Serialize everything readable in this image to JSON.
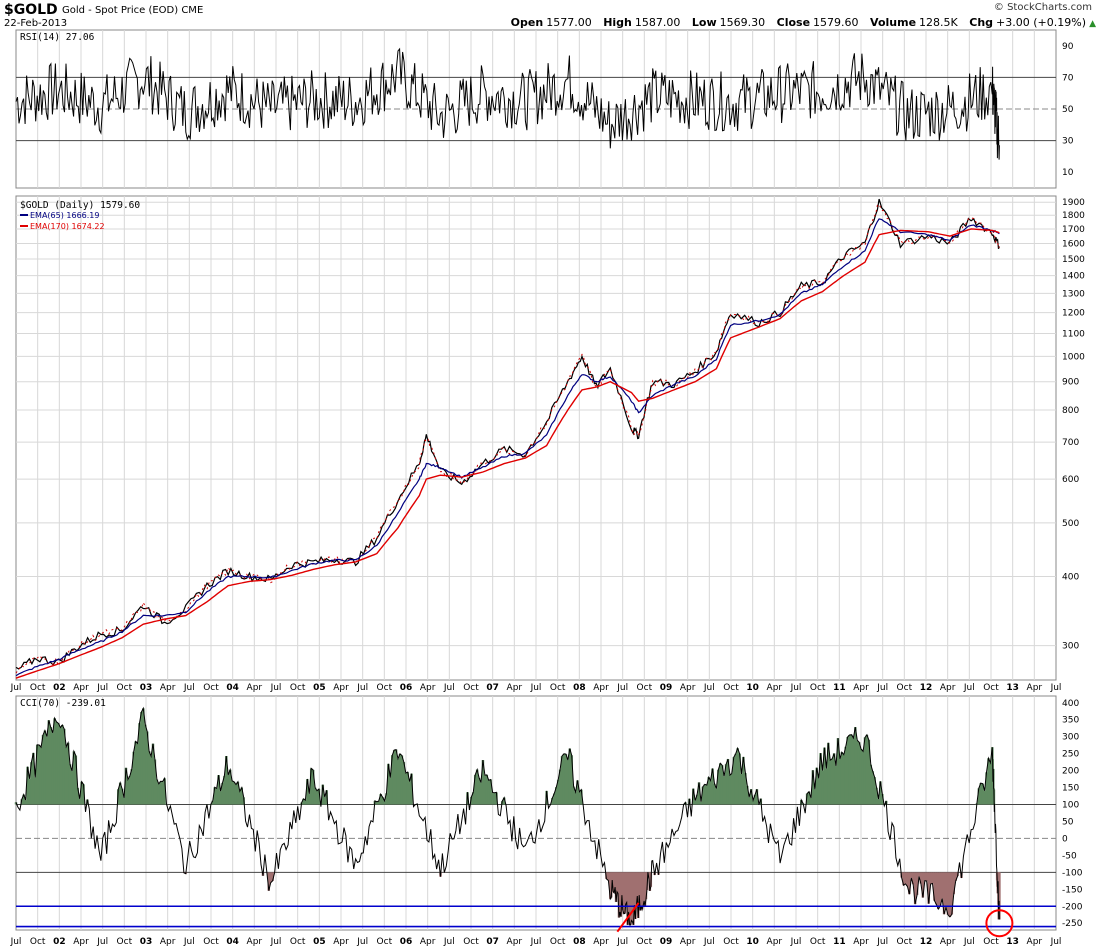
{
  "header": {
    "symbol": "$GOLD",
    "description": "Gold - Spot Price (EOD)",
    "exchange": "CME",
    "date": "22-Feb-2013",
    "brand": "© StockCharts.com",
    "ohlc": [
      {
        "label": "Open",
        "value": "1577.00"
      },
      {
        "label": "High",
        "value": "1587.00"
      },
      {
        "label": "Low",
        "value": "1569.30"
      },
      {
        "label": "Close",
        "value": "1579.60"
      },
      {
        "label": "Volume",
        "value": "128.5K"
      },
      {
        "label": "Chg",
        "value": "+3.00 (+0.19%)"
      }
    ],
    "chg_icon": "up-triangle-icon"
  },
  "colors": {
    "price_up": "#000000",
    "price_down": "#cc0000",
    "ema65": "#000080",
    "ema170": "#e00000",
    "fill_high": "#5f8a60",
    "fill_low": "#a07070",
    "hline_blue": "#0000cc",
    "annotation": "#ff0000",
    "grid": "#d8d8d8"
  },
  "rsi_panel": {
    "label": "RSI(14) 27.06",
    "ticks": [
      90,
      70,
      50,
      30,
      10
    ]
  },
  "price_panel": {
    "label": "$GOLD (Daily) 1579.60",
    "ema65_label": "EMA(65) 1666.19",
    "ema170_label": "EMA(170) 1674.22",
    "ticks": [
      1900,
      1800,
      1700,
      1600,
      1500,
      1400,
      1300,
      1200,
      1100,
      1000,
      900,
      800,
      700,
      600,
      500,
      400,
      300
    ]
  },
  "cci_panel": {
    "label": "CCI(70) -239.01",
    "ticks": [
      400,
      350,
      300,
      250,
      200,
      150,
      100,
      50,
      0,
      -50,
      -100,
      -150,
      -200,
      -250
    ]
  },
  "x_axis_labels": [
    "Jul",
    "Oct",
    "02",
    "Apr",
    "Jul",
    "Oct",
    "03",
    "Apr",
    "Jul",
    "Oct",
    "04",
    "Apr",
    "Jul",
    "Oct",
    "05",
    "Apr",
    "Jul",
    "Oct",
    "06",
    "Apr",
    "Jul",
    "Oct",
    "07",
    "Apr",
    "Jul",
    "Oct",
    "08",
    "Apr",
    "Jul",
    "Oct",
    "09",
    "Apr",
    "Jul",
    "Oct",
    "10",
    "Apr",
    "Jul",
    "Oct",
    "11",
    "Apr",
    "Jul",
    "Oct",
    "12",
    "Apr",
    "Jul",
    "Oct",
    "13",
    "Apr",
    "Jul"
  ],
  "chart_data": [
    {
      "type": "line",
      "title": "RSI(14) 27.06",
      "ylim": [
        0,
        100
      ],
      "reference_lines": [
        70,
        50,
        30
      ],
      "x": [
        "2001-07",
        "2002-01",
        "2002-07",
        "2003-01",
        "2003-07",
        "2004-01",
        "2004-07",
        "2005-01",
        "2005-07",
        "2006-01",
        "2006-07",
        "2007-01",
        "2007-07",
        "2008-01",
        "2008-07",
        "2009-01",
        "2009-07",
        "2010-01",
        "2010-07",
        "2011-01",
        "2011-07",
        "2012-01",
        "2012-07",
        "2013-01",
        "2013-02"
      ],
      "series": [
        {
          "name": "RSI(14)",
          "values": [
            55,
            62,
            52,
            70,
            48,
            62,
            50,
            56,
            55,
            72,
            45,
            60,
            55,
            68,
            40,
            58,
            56,
            54,
            60,
            62,
            70,
            46,
            50,
            62,
            27
          ]
        }
      ],
      "grid": true
    },
    {
      "type": "line",
      "title": "$GOLD (Daily) 1579.60",
      "log_scale": true,
      "ylim": [
        260,
        1950
      ],
      "x": [
        "2001-07",
        "2001-10",
        "2002-01",
        "2002-04",
        "2002-07",
        "2002-10",
        "2003-01",
        "2003-04",
        "2003-07",
        "2003-10",
        "2004-01",
        "2004-04",
        "2004-07",
        "2004-10",
        "2005-01",
        "2005-04",
        "2005-07",
        "2005-10",
        "2006-01",
        "2006-04",
        "2006-05",
        "2006-07",
        "2006-10",
        "2007-01",
        "2007-04",
        "2007-07",
        "2007-10",
        "2008-01",
        "2008-03",
        "2008-05",
        "2008-07",
        "2008-10",
        "2008-11",
        "2009-01",
        "2009-04",
        "2009-07",
        "2009-10",
        "2009-12",
        "2010-04",
        "2010-07",
        "2010-10",
        "2011-01",
        "2011-04",
        "2011-07",
        "2011-09",
        "2011-12",
        "2012-04",
        "2012-07",
        "2012-10",
        "2013-01",
        "2013-02"
      ],
      "series": [
        {
          "name": "$GOLD (Daily)",
          "values": [
            270,
            285,
            280,
            300,
            315,
            320,
            355,
            330,
            350,
            385,
            410,
            400,
            395,
            420,
            425,
            430,
            425,
            470,
            550,
            640,
            720,
            620,
            590,
            640,
            680,
            665,
            760,
            900,
            1000,
            880,
            950,
            740,
            720,
            900,
            890,
            940,
            1020,
            1200,
            1150,
            1200,
            1340,
            1360,
            1520,
            1600,
            1900,
            1600,
            1650,
            1600,
            1780,
            1670,
            1580
          ]
        },
        {
          "name": "EMA(65)",
          "values": [
            265,
            275,
            283,
            295,
            305,
            318,
            340,
            340,
            345,
            375,
            400,
            400,
            398,
            410,
            422,
            428,
            428,
            455,
            520,
            600,
            640,
            630,
            605,
            630,
            660,
            668,
            720,
            850,
            930,
            900,
            920,
            830,
            790,
            850,
            890,
            920,
            990,
            1140,
            1160,
            1190,
            1300,
            1350,
            1460,
            1550,
            1780,
            1680,
            1660,
            1620,
            1730,
            1690,
            1666
          ]
        },
        {
          "name": "EMA(170)",
          "values": [
            262,
            270,
            278,
            288,
            298,
            310,
            328,
            335,
            340,
            360,
            385,
            392,
            395,
            402,
            412,
            420,
            425,
            440,
            490,
            560,
            600,
            610,
            605,
            618,
            640,
            655,
            690,
            800,
            870,
            880,
            900,
            860,
            830,
            840,
            870,
            900,
            950,
            1080,
            1130,
            1170,
            1260,
            1310,
            1400,
            1480,
            1660,
            1690,
            1680,
            1650,
            1700,
            1690,
            1674
          ]
        }
      ],
      "legend": "top-left",
      "grid": true
    },
    {
      "type": "line",
      "title": "CCI(70) -239.01",
      "ylim": [
        -270,
        420
      ],
      "reference_lines": [
        100,
        0,
        -100,
        -200,
        -260
      ],
      "x": [
        "2001-07",
        "2002-01",
        "2002-07",
        "2003-01",
        "2003-07",
        "2004-01",
        "2004-07",
        "2005-01",
        "2005-07",
        "2006-01",
        "2006-07",
        "2007-01",
        "2007-07",
        "2008-01",
        "2008-07",
        "2008-10",
        "2009-01",
        "2009-07",
        "2010-01",
        "2010-07",
        "2011-01",
        "2011-07",
        "2012-01",
        "2012-07",
        "2013-01",
        "2013-02"
      ],
      "series": [
        {
          "name": "CCI(70)",
          "values": [
            90,
            380,
            -60,
            350,
            -80,
            220,
            -130,
            180,
            -80,
            260,
            -90,
            200,
            -40,
            240,
            -150,
            -255,
            -100,
            120,
            250,
            -60,
            230,
            300,
            -140,
            -200,
            250,
            -239
          ]
        }
      ],
      "grid": true
    }
  ]
}
